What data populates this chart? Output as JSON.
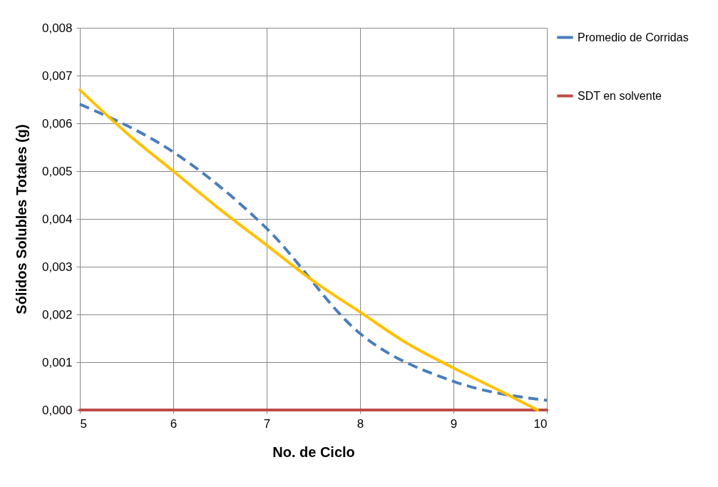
{
  "chart_data": {
    "type": "line",
    "xlabel": "No. de Ciclo",
    "ylabel": "Sólidos Solubles Totales (g)",
    "x": [
      5,
      6,
      7,
      8,
      9,
      10
    ],
    "series": [
      {
        "name": "Promedio de Corridas",
        "color": "#4a7ebb",
        "values": [
          0.0064,
          0.0054,
          0.0038,
          0.0016,
          0.0006,
          0.0002
        ],
        "line_style": "dashed"
      },
      {
        "name": "SDT en solvente",
        "color": "#be4b48",
        "values": [
          0,
          0,
          0,
          0,
          0,
          0
        ],
        "line_style": "solid"
      },
      {
        "type": "line",
        "color": "#ffc000",
        "x": [
          5,
          5.5,
          6,
          6.5,
          7,
          7.5,
          8,
          8.5,
          9,
          9.5,
          9.9
        ],
        "values": [
          0.0067,
          0.0058,
          0.005,
          0.0042,
          0.00345,
          0.0027,
          0.00205,
          0.0014,
          0.00088,
          0.0004,
          0
        ],
        "line_style": "solid"
      }
    ],
    "xlim": [
      5,
      10
    ],
    "xticks": [
      5,
      6,
      7,
      8,
      9,
      10
    ],
    "ylim": [
      0,
      0.008
    ],
    "yticks": [
      {
        "value": 0,
        "label": "0,000"
      },
      {
        "value": 0.001,
        "label": "0,001"
      },
      {
        "value": 0.002,
        "label": "0,002"
      },
      {
        "value": 0.003,
        "label": "0,003"
      },
      {
        "value": 0.004,
        "label": "0,004"
      },
      {
        "value": 0.005,
        "label": "0,005"
      },
      {
        "value": 0.006,
        "label": "0,006"
      },
      {
        "value": 0.007,
        "label": "0,007"
      },
      {
        "value": 0.008,
        "label": "0,008"
      }
    ],
    "grid": true,
    "legend": "right",
    "marker": "none"
  }
}
